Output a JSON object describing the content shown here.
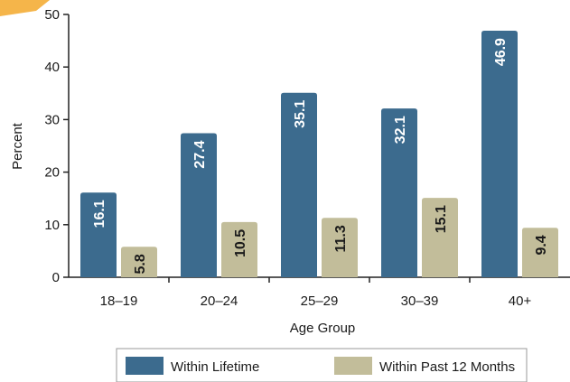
{
  "chart_data": {
    "type": "bar",
    "title": "",
    "xlabel": "Age Group",
    "ylabel": "Percent",
    "ylim": [
      0,
      50
    ],
    "yticks": [
      0,
      10,
      20,
      30,
      40,
      50
    ],
    "categories": [
      "18–19",
      "20–24",
      "25–29",
      "30–39",
      "40+"
    ],
    "series": [
      {
        "name": "Within Lifetime",
        "color": "#3c6b8e",
        "label_color": "#ffffff",
        "values": [
          16.1,
          27.4,
          35.1,
          32.1,
          46.9
        ],
        "labels": [
          "16.1",
          "27.4",
          "35.1",
          "32.1",
          "46.9"
        ]
      },
      {
        "name": "Within Past 12 Months",
        "color": "#c2bd9a",
        "label_color": "#1a1a1a",
        "values": [
          5.8,
          10.5,
          11.3,
          15.1,
          9.4
        ],
        "labels": [
          "5.8",
          "10.5",
          "11.3",
          "15.1",
          "9.4"
        ]
      }
    ],
    "legend": "bottom",
    "grid": false,
    "data_labels": "rotated"
  }
}
